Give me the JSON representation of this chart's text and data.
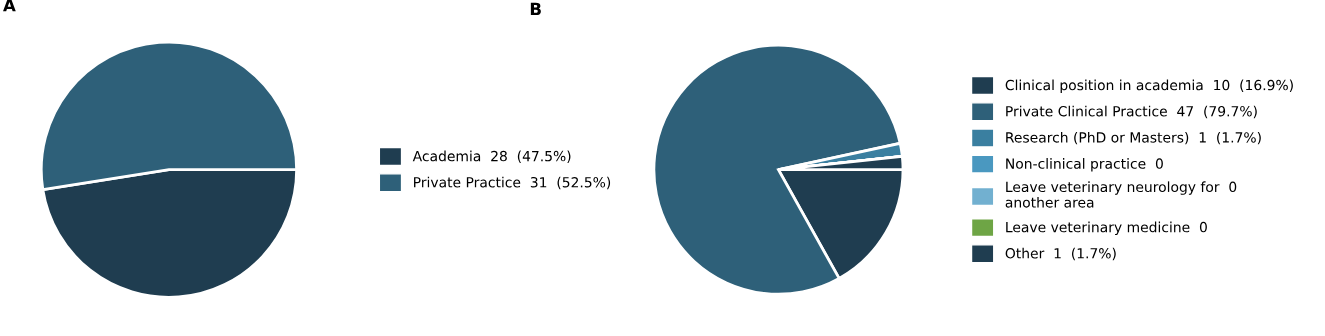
{
  "chart_data": [
    {
      "type": "pie",
      "title": "A",
      "categories": [
        "Academia  28  (47.5%)",
        "Private Practice  31  (52.5%)"
      ],
      "values": [
        47.5,
        52.5
      ],
      "colors": [
        "#1f3d50",
        "#2e6079"
      ],
      "legend": "right"
    },
    {
      "type": "pie",
      "title": "B",
      "categories": [
        "Clinical position in academia  10  (16.9%)",
        "Private Clinical Practice  47  (79.7%)",
        "Research (PhD or Masters)  1  (1.7%)",
        "Non-clinical practice  0",
        "Leave veterinary neurology for  0\nanother area",
        "Leave veterinary medicine  0",
        "Other  1  (1.7%)"
      ],
      "values": [
        16.9,
        79.7,
        1.7,
        0,
        0,
        0,
        1.7
      ],
      "colors": [
        "#1f3d50",
        "#2e6079",
        "#3a7fa0",
        "#4a98c0",
        "#72b0d0",
        "#6ea545",
        "#1f3d50"
      ],
      "legend": "right"
    }
  ]
}
